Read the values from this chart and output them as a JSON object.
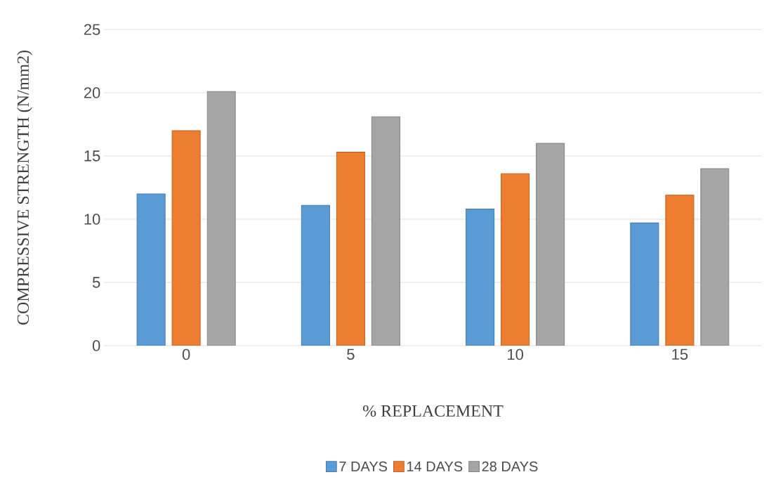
{
  "chart_data": {
    "type": "bar",
    "xlabel": "% REPLACEMENT",
    "ylabel": "COMPRESSIVE STRENGTH (N/mm2)",
    "categories": [
      "0",
      "5",
      "10",
      "15"
    ],
    "series": [
      {
        "name": "7 DAYS",
        "color": "#5b9bd5",
        "values": [
          12.0,
          11.1,
          10.8,
          9.7
        ]
      },
      {
        "name": "14 DAYS",
        "color": "#ed7d31",
        "values": [
          17.0,
          15.3,
          13.6,
          11.9
        ]
      },
      {
        "name": "28 DAYS",
        "color": "#a5a5a5",
        "values": [
          20.1,
          18.1,
          16.0,
          14.0
        ]
      }
    ],
    "ylim": [
      0,
      25
    ],
    "yticks": [
      0,
      5,
      10,
      15,
      20,
      25
    ],
    "grid": "y",
    "legend": "bottom"
  }
}
